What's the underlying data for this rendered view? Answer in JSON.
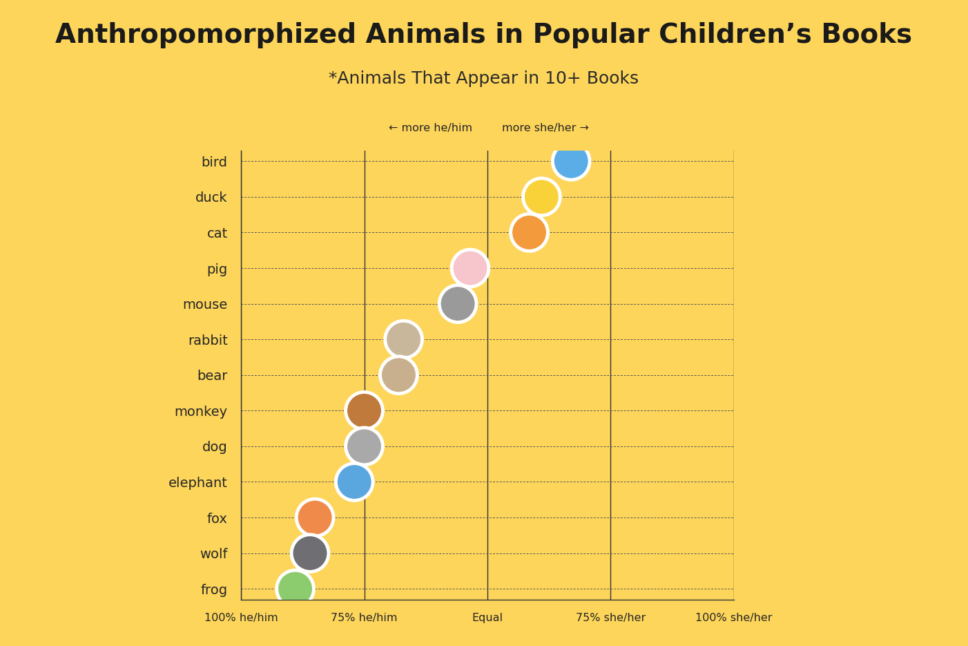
{
  "chart_data": {
    "type": "scatter",
    "title": "Anthropomorphized Animals in Popular Children’s Books",
    "subtitle": "*Animals That Appear in 10+ Books",
    "annotations": [
      "← more he/him",
      "more she/her →"
    ],
    "categories": [
      "bird",
      "duck",
      "cat",
      "pig",
      "mouse",
      "rabbit",
      "bear",
      "monkey",
      "dog",
      "elephant",
      "fox",
      "wolf",
      "frog"
    ],
    "values": [
      67,
      61,
      58.5,
      46.5,
      44,
      33,
      32,
      25,
      25,
      23,
      15,
      14,
      11
    ],
    "colors": [
      "#5aade6",
      "#f9d23a",
      "#f39a3c",
      "#f7c6cc",
      "#9a9a9a",
      "#c9b79c",
      "#c8b08f",
      "#c07a3c",
      "#a9a9a9",
      "#5aa7e0",
      "#ef8a4a",
      "#6e6e73",
      "#8dcc6e"
    ],
    "orientation": "horizontal",
    "xlim": [
      0,
      100
    ],
    "xticks": [
      {
        "value": 0,
        "label": "100% he/him"
      },
      {
        "value": 25,
        "label": "75% he/him"
      },
      {
        "value": 50,
        "label": "Equal"
      },
      {
        "value": 75,
        "label": "75% she/her"
      },
      {
        "value": 100,
        "label": "100% she/her"
      }
    ],
    "grid": true
  }
}
